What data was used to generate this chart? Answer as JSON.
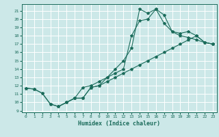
{
  "xlabel": "Humidex (Indice chaleur)",
  "bg_color": "#cce8e8",
  "grid_color": "#ffffff",
  "line_color": "#1a6b5a",
  "xlim": [
    -0.5,
    23.5
  ],
  "ylim": [
    8.8,
    21.8
  ],
  "xticks": [
    0,
    1,
    2,
    3,
    4,
    5,
    6,
    7,
    8,
    9,
    10,
    11,
    12,
    13,
    14,
    15,
    16,
    17,
    18,
    19,
    20,
    21,
    22,
    23
  ],
  "yticks": [
    9,
    10,
    11,
    12,
    13,
    14,
    15,
    16,
    17,
    18,
    19,
    20,
    21
  ],
  "line1_x": [
    0,
    1,
    2,
    3,
    4,
    5,
    6,
    7,
    8,
    9,
    10,
    11,
    12,
    13,
    14,
    15,
    16,
    17,
    18,
    19,
    20,
    21,
    22,
    23
  ],
  "line1_y": [
    11.7,
    11.6,
    11.1,
    9.8,
    9.5,
    10.0,
    10.5,
    10.5,
    11.8,
    12.0,
    12.5,
    13.0,
    13.5,
    14.0,
    14.5,
    15.0,
    15.5,
    16.0,
    16.5,
    17.0,
    17.5,
    18.0,
    17.2,
    17.0
  ],
  "line2_x": [
    0,
    1,
    2,
    3,
    4,
    5,
    6,
    7,
    8,
    9,
    10,
    11,
    12,
    13,
    14,
    15,
    16,
    17,
    18,
    19,
    20,
    21,
    22,
    23
  ],
  "line2_y": [
    11.7,
    11.6,
    11.1,
    9.8,
    9.5,
    10.0,
    10.5,
    10.5,
    11.8,
    12.0,
    13.0,
    14.0,
    15.0,
    16.5,
    21.2,
    20.7,
    21.2,
    19.5,
    18.5,
    18.0,
    17.8,
    17.5,
    17.2,
    17.0
  ],
  "line3_x": [
    4,
    5,
    6,
    7,
    8,
    9,
    10,
    11,
    12,
    13,
    14,
    15,
    16,
    17,
    18,
    19,
    20,
    21,
    22,
    23
  ],
  "line3_y": [
    9.5,
    10.0,
    10.5,
    11.8,
    12.0,
    12.5,
    13.0,
    13.5,
    14.0,
    18.0,
    19.8,
    20.0,
    21.2,
    20.5,
    18.5,
    18.3,
    18.5,
    18.0,
    17.2,
    17.0
  ],
  "xlabel_fontsize": 6,
  "tick_fontsize": 4.5,
  "linewidth": 0.8,
  "markersize": 3.0
}
